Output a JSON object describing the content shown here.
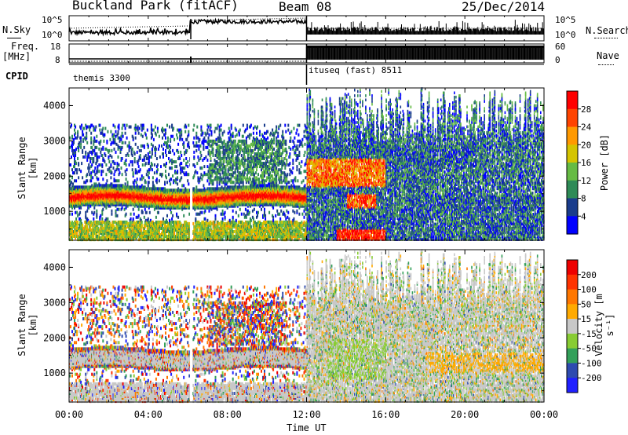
{
  "header": {
    "station": "Buckland Park (fitACF)",
    "beam": "Beam 08",
    "date": "25/Dec/2014"
  },
  "panels": {
    "nsky_label": "N.Sky",
    "nsearch_label": "N.Search",
    "nsky_ticks": [
      "10^5",
      "10^0"
    ],
    "nsearch_ticks": [
      "10^5",
      "10^0"
    ],
    "freq_label_line1": "Freq.",
    "freq_label_line2": "[MHz]",
    "freq_ticks": [
      "18",
      "8"
    ],
    "nave_label": "Nave",
    "nave_ticks": [
      "60",
      "0"
    ],
    "cpid_label": "CPID",
    "cpid_mode1": "themis 3300",
    "cpid_mode2": "ituseq (fast) 8511"
  },
  "colors": {
    "power_scale": [
      "#0000ff",
      "#1a3c8c",
      "#2e8b57",
      "#66bb44",
      "#d4c400",
      "#ff9900",
      "#ff4400",
      "#ff0000"
    ],
    "velocity_scale": [
      "#2020ff",
      "#2e4bb0",
      "#33a05a",
      "#88cc33",
      "#c8c8c8",
      "#ffaa00",
      "#ff7700",
      "#ff3300",
      "#ee0000"
    ]
  },
  "chart_data": [
    {
      "type": "heatmap",
      "name": "power",
      "ylabel": "Slant Range [km]",
      "ylim": [
        180,
        4500
      ],
      "xlim": [
        0,
        24
      ],
      "yticks": [
        1000,
        2000,
        3000,
        4000
      ],
      "colorbar_label": "Power [dB]",
      "colorbar_ticks": [
        4,
        8,
        12,
        16,
        20,
        24,
        28
      ],
      "colorbar_range": [
        0,
        32
      ]
    },
    {
      "type": "heatmap",
      "name": "velocity",
      "ylabel": "Slant Range [km]",
      "ylim": [
        180,
        4500
      ],
      "xlim": [
        0,
        24
      ],
      "yticks": [
        1000,
        2000,
        3000,
        4000
      ],
      "xticks": [
        "00:00",
        "04:00",
        "08:00",
        "12:00",
        "16:00",
        "20:00",
        "00:00"
      ],
      "xlabel": "Time UT",
      "colorbar_label": "Velocity [m s⁻¹]",
      "colorbar_ticks": [
        "200",
        "100",
        "50",
        "15",
        "-15",
        "-50",
        "-100",
        "-200"
      ]
    }
  ]
}
